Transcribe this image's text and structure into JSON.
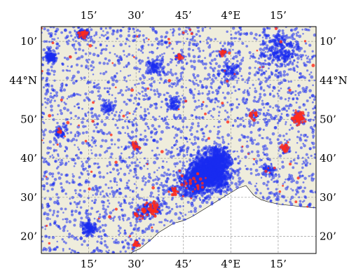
{
  "map": {
    "extent": {
      "lon_min": 3.0,
      "lon_max": 4.45,
      "lat_min": 43.26,
      "lat_max": 44.23
    },
    "grid": "dashed",
    "colors": {
      "land": "#efeddc",
      "sea": "#ffffff",
      "grid": "#9a9a9a",
      "frame": "#000000",
      "points_primary": "#1a2cf0",
      "points_secondary": "#ff2a1a"
    },
    "lon_ticks": [
      {
        "lon": 3.25,
        "label": "15’"
      },
      {
        "lon": 3.5,
        "label": "30’"
      },
      {
        "lon": 3.75,
        "label": "45’"
      },
      {
        "lon": 4.0,
        "label": "4°E"
      },
      {
        "lon": 4.25,
        "label": "15’"
      }
    ],
    "lat_ticks": [
      {
        "lat": 44.1667,
        "label": "10’"
      },
      {
        "lat": 44.0,
        "label": "44°N"
      },
      {
        "lat": 43.8333,
        "label": "50’"
      },
      {
        "lat": 43.6667,
        "label": "40’"
      },
      {
        "lat": 43.5,
        "label": "30’"
      },
      {
        "lat": 43.3333,
        "label": "20’"
      }
    ],
    "coastline": [
      [
        3.47,
        43.26
      ],
      [
        3.49,
        43.27
      ],
      [
        3.52,
        43.28
      ],
      [
        3.55,
        43.3
      ],
      [
        3.58,
        43.32
      ],
      [
        3.62,
        43.35
      ],
      [
        3.66,
        43.37
      ],
      [
        3.7,
        43.39
      ],
      [
        3.75,
        43.4
      ],
      [
        3.8,
        43.42
      ],
      [
        3.84,
        43.44
      ],
      [
        3.88,
        43.46
      ],
      [
        3.92,
        43.48
      ],
      [
        3.96,
        43.5
      ],
      [
        4.0,
        43.52
      ],
      [
        4.04,
        43.54
      ],
      [
        4.08,
        43.55
      ],
      [
        4.1,
        43.53
      ],
      [
        4.12,
        43.51
      ],
      [
        4.16,
        43.49
      ],
      [
        4.2,
        43.48
      ],
      [
        4.26,
        43.47
      ],
      [
        4.32,
        43.465
      ],
      [
        4.38,
        43.46
      ],
      [
        4.45,
        43.455
      ]
    ],
    "clusters": [
      {
        "lon": 3.89,
        "lat": 43.61,
        "r": 0.08,
        "n": 1700,
        "secondary": 0.0
      },
      {
        "lon": 3.8,
        "lat": 43.56,
        "r": 0.06,
        "n": 420,
        "secondary": 0.05
      },
      {
        "lon": 3.94,
        "lat": 43.67,
        "r": 0.05,
        "n": 320,
        "secondary": 0.0
      },
      {
        "lon": 3.22,
        "lat": 44.2,
        "r": 0.025,
        "n": 140,
        "secondary": 0.12
      },
      {
        "lon": 3.05,
        "lat": 44.1,
        "r": 0.025,
        "n": 140,
        "secondary": 0.0
      },
      {
        "lon": 4.36,
        "lat": 43.84,
        "r": 0.025,
        "n": 130,
        "secondary": 0.45
      },
      {
        "lon": 4.26,
        "lat": 44.13,
        "r": 0.08,
        "n": 260,
        "secondary": 0.0
      },
      {
        "lon": 3.25,
        "lat": 43.37,
        "r": 0.03,
        "n": 130,
        "secondary": 0.0
      },
      {
        "lon": 3.6,
        "lat": 43.45,
        "r": 0.03,
        "n": 130,
        "secondary": 0.28
      },
      {
        "lon": 3.56,
        "lat": 43.45,
        "r": 0.025,
        "n": 60,
        "secondary": 0.22
      },
      {
        "lon": 3.7,
        "lat": 43.53,
        "r": 0.02,
        "n": 50,
        "secondary": 0.4
      },
      {
        "lon": 3.5,
        "lat": 43.3,
        "r": 0.015,
        "n": 35,
        "secondary": 0.55
      },
      {
        "lon": 3.6,
        "lat": 44.06,
        "r": 0.035,
        "n": 100,
        "secondary": 0.0
      },
      {
        "lon": 4.12,
        "lat": 43.85,
        "r": 0.02,
        "n": 40,
        "secondary": 0.35
      },
      {
        "lon": 3.96,
        "lat": 44.12,
        "r": 0.02,
        "n": 35,
        "secondary": 0.4
      },
      {
        "lon": 4.0,
        "lat": 44.04,
        "r": 0.04,
        "n": 80,
        "secondary": 0.05
      },
      {
        "lon": 3.5,
        "lat": 43.72,
        "r": 0.02,
        "n": 40,
        "secondary": 0.3
      },
      {
        "lon": 3.73,
        "lat": 44.1,
        "r": 0.02,
        "n": 40,
        "secondary": 0.3
      },
      {
        "lon": 4.29,
        "lat": 43.71,
        "r": 0.02,
        "n": 50,
        "secondary": 0.35
      },
      {
        "lon": 3.52,
        "lat": 43.43,
        "r": 0.025,
        "n": 55,
        "secondary": 0.2
      },
      {
        "lon": 3.1,
        "lat": 43.78,
        "r": 0.03,
        "n": 60,
        "secondary": 0.1
      },
      {
        "lon": 3.35,
        "lat": 43.88,
        "r": 0.03,
        "n": 70,
        "secondary": 0.0
      },
      {
        "lon": 3.7,
        "lat": 43.9,
        "r": 0.03,
        "n": 70,
        "secondary": 0.0
      },
      {
        "lon": 4.2,
        "lat": 43.62,
        "r": 0.03,
        "n": 60,
        "secondary": 0.05
      }
    ],
    "background_points": 3200,
    "background_secondary_share": 0.02
  }
}
